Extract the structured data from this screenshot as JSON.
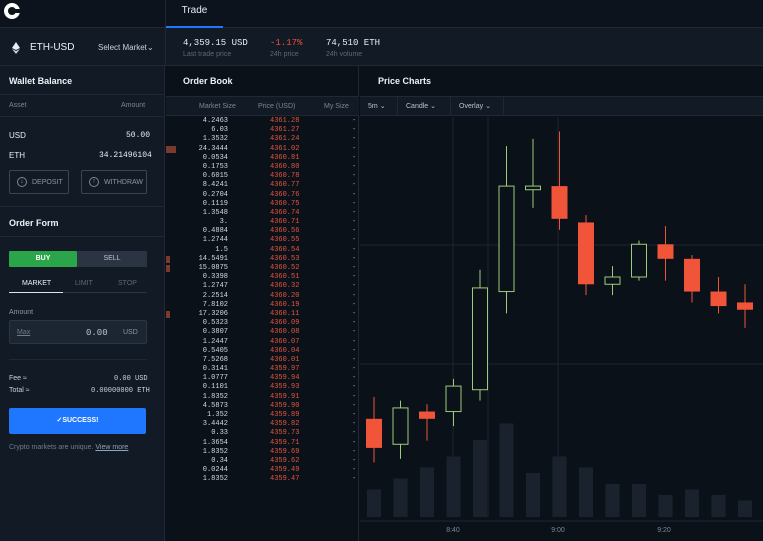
{
  "nav": {
    "tab_trade": "Trade"
  },
  "header": {
    "market": "ETH-USD",
    "select_market": "Select Market",
    "last_price": "4,359.15 USD",
    "last_price_label": "Last trade price",
    "change": "-1.17%",
    "change_label": "24h price",
    "volume": "74,510 ETH",
    "volume_label": "24h volume"
  },
  "wallet": {
    "title": "Wallet Balance",
    "col_asset": "Asset",
    "col_amount": "Amount",
    "rows": [
      {
        "asset": "USD",
        "amount": "50.00"
      },
      {
        "asset": "ETH",
        "amount": "34.21496104"
      }
    ],
    "deposit": "DEPOSIT",
    "withdraw": "WITHDRAW"
  },
  "order_form": {
    "title": "Order Form",
    "buy": "BUY",
    "sell": "SELL",
    "tabs": [
      "MARKET",
      "LIMIT",
      "STOP"
    ],
    "amount_label": "Amount",
    "max": "Max",
    "amount_value": "0.00",
    "amount_unit": "USD",
    "fee_label": "Fee ≈",
    "fee_value": "0.00 USD",
    "total_label": "Total ≈",
    "total_value": "0.00000000 ETH",
    "submit": "✓SUCCESS!",
    "disclaimer": "Crypto markets are unique.",
    "view_more": "View more"
  },
  "order_book": {
    "title": "Order Book",
    "col_size": "Market Size",
    "col_price": "Price (USD)",
    "col_my": "My Size",
    "rows": [
      {
        "size": "4.2463",
        "price": "4361.28",
        "my": "-",
        "bar": 0
      },
      {
        "size": "6.03",
        "price": "4361.27",
        "my": "-",
        "bar": 0
      },
      {
        "size": "1.3532",
        "price": "4361.24",
        "my": "-",
        "bar": 0
      },
      {
        "size": "24.3444",
        "price": "4361.02",
        "my": "-",
        "bar": 0.05
      },
      {
        "size": "0.0534",
        "price": "4360.81",
        "my": "-",
        "bar": 0
      },
      {
        "size": "0.1753",
        "price": "4360.80",
        "my": "-",
        "bar": 0
      },
      {
        "size": "0.6015",
        "price": "4360.78",
        "my": "-",
        "bar": 0
      },
      {
        "size": "8.4241",
        "price": "4360.77",
        "my": "-",
        "bar": 0
      },
      {
        "size": "0.2704",
        "price": "4360.76",
        "my": "-",
        "bar": 0
      },
      {
        "size": "0.1119",
        "price": "4360.75",
        "my": "-",
        "bar": 0
      },
      {
        "size": "1.3548",
        "price": "4360.74",
        "my": "-",
        "bar": 0
      },
      {
        "size": "3.",
        "price": "4360.71",
        "my": "-",
        "bar": 0
      },
      {
        "size": "0.4884",
        "price": "4360.56",
        "my": "-",
        "bar": 0
      },
      {
        "size": "1.2744",
        "price": "4360.55",
        "my": "-",
        "bar": 0
      },
      {
        "size": "1.5",
        "price": "4360.54",
        "my": "-",
        "bar": 0
      },
      {
        "size": "14.5491",
        "price": "4360.53",
        "my": "-",
        "bar": 0.02
      },
      {
        "size": "15.0875",
        "price": "4360.52",
        "my": "-",
        "bar": 0.02
      },
      {
        "size": "0.3398",
        "price": "4360.51",
        "my": "-",
        "bar": 0
      },
      {
        "size": "1.2747",
        "price": "4360.32",
        "my": "-",
        "bar": 0
      },
      {
        "size": "2.2514",
        "price": "4360.20",
        "my": "-",
        "bar": 0
      },
      {
        "size": "7.8102",
        "price": "4360.19",
        "my": "-",
        "bar": 0
      },
      {
        "size": "17.3206",
        "price": "4360.11",
        "my": "-",
        "bar": 0.02
      },
      {
        "size": "0.5323",
        "price": "4360.09",
        "my": "-",
        "bar": 0
      },
      {
        "size": "0.3807",
        "price": "4360.08",
        "my": "-",
        "bar": 0
      },
      {
        "size": "1.2447",
        "price": "4360.07",
        "my": "-",
        "bar": 0
      },
      {
        "size": "0.5405",
        "price": "4360.04",
        "my": "-",
        "bar": 0
      },
      {
        "size": "7.5268",
        "price": "4360.01",
        "my": "-",
        "bar": 0
      },
      {
        "size": "0.3141",
        "price": "4359.97",
        "my": "-",
        "bar": 0
      },
      {
        "size": "1.0777",
        "price": "4359.94",
        "my": "-",
        "bar": 0
      },
      {
        "size": "0.1101",
        "price": "4359.93",
        "my": "-",
        "bar": 0
      },
      {
        "size": "1.8352",
        "price": "4359.91",
        "my": "-",
        "bar": 0
      },
      {
        "size": "4.5873",
        "price": "4359.90",
        "my": "-",
        "bar": 0
      },
      {
        "size": "1.352",
        "price": "4359.89",
        "my": "-",
        "bar": 0
      },
      {
        "size": "3.4442",
        "price": "4359.82",
        "my": "-",
        "bar": 0
      },
      {
        "size": "0.33",
        "price": "4359.73",
        "my": "-",
        "bar": 0
      },
      {
        "size": "1.3654",
        "price": "4359.71",
        "my": "-",
        "bar": 0
      },
      {
        "size": "1.8352",
        "price": "4359.69",
        "my": "-",
        "bar": 0
      },
      {
        "size": "0.34",
        "price": "4359.62",
        "my": "-",
        "bar": 0
      },
      {
        "size": "0.0244",
        "price": "4359.49",
        "my": "-",
        "bar": 0
      },
      {
        "size": "1.8352",
        "price": "4359.47",
        "my": "-",
        "bar": 0
      }
    ]
  },
  "price_chart": {
    "title": "Price Charts",
    "toolbar": {
      "interval": "5m",
      "type": "Candle",
      "overlay": "Overlay"
    }
  },
  "chart_data": {
    "type": "candlestick",
    "x_ticks": [
      "8:40",
      "9:00",
      "9:20"
    ],
    "up_color": "#9ccc7a",
    "down_color": "#f0553a",
    "candles": [
      {
        "dir": "down",
        "open": 4354.7,
        "close": 4353.9,
        "high": 4355.3,
        "low": 4353.5,
        "vol": 0.25
      },
      {
        "dir": "up",
        "open": 4354.0,
        "close": 4355.0,
        "high": 4355.2,
        "low": 4353.6,
        "vol": 0.35
      },
      {
        "dir": "down",
        "open": 4354.9,
        "close": 4354.7,
        "high": 4355.1,
        "low": 4354.1,
        "vol": 0.45
      },
      {
        "dir": "up",
        "open": 4354.9,
        "close": 4355.6,
        "high": 4355.8,
        "low": 4354.5,
        "vol": 0.55
      },
      {
        "dir": "up",
        "open": 4355.5,
        "close": 4358.3,
        "high": 4358.8,
        "low": 4355.2,
        "vol": 0.7
      },
      {
        "dir": "up",
        "open": 4358.2,
        "close": 4361.1,
        "high": 4362.2,
        "low": 4357.6,
        "vol": 0.85
      },
      {
        "dir": "up",
        "open": 4361.0,
        "close": 4361.1,
        "high": 4362.4,
        "low": 4360.5,
        "vol": 0.4
      },
      {
        "dir": "down",
        "open": 4361.1,
        "close": 4360.2,
        "high": 4362.6,
        "low": 4359.9,
        "vol": 0.55
      },
      {
        "dir": "down",
        "open": 4360.1,
        "close": 4358.4,
        "high": 4360.3,
        "low": 4358.1,
        "vol": 0.45
      },
      {
        "dir": "up",
        "open": 4358.4,
        "close": 4358.6,
        "high": 4358.9,
        "low": 4358.1,
        "vol": 0.3
      },
      {
        "dir": "up",
        "open": 4358.6,
        "close": 4359.5,
        "high": 4359.6,
        "low": 4358.5,
        "vol": 0.3
      },
      {
        "dir": "down",
        "open": 4359.5,
        "close": 4359.1,
        "high": 4360.0,
        "low": 4358.5,
        "vol": 0.2
      },
      {
        "dir": "down",
        "open": 4359.1,
        "close": 4358.2,
        "high": 4359.2,
        "low": 4357.9,
        "vol": 0.25
      },
      {
        "dir": "down",
        "open": 4358.2,
        "close": 4357.8,
        "high": 4358.6,
        "low": 4357.6,
        "vol": 0.2
      },
      {
        "dir": "down",
        "open": 4357.9,
        "close": 4357.7,
        "high": 4358.4,
        "low": 4357.2,
        "vol": 0.15
      }
    ]
  }
}
